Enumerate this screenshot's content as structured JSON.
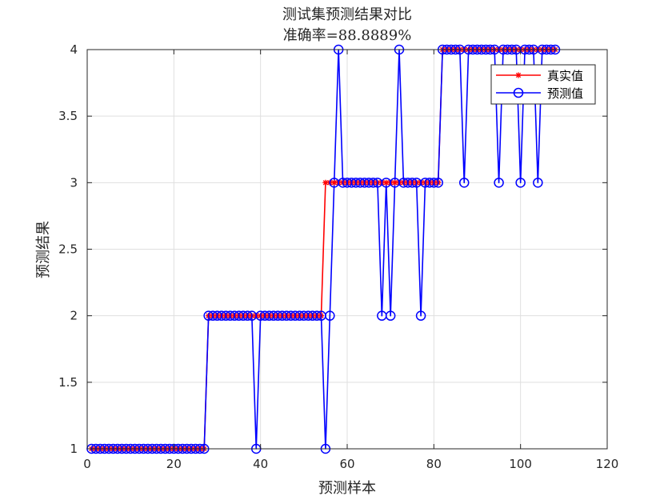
{
  "chart_data": {
    "type": "line",
    "title": "测试集预测结果对比",
    "subtitle": "准确率=88.8889%",
    "xlabel": "预测样本",
    "ylabel": "预测结果",
    "xlim": [
      0,
      120
    ],
    "ylim": [
      1,
      4
    ],
    "xticks": [
      0,
      20,
      40,
      60,
      80,
      100,
      120
    ],
    "yticks": [
      1,
      1.5,
      2,
      2.5,
      3,
      3.5,
      4
    ],
    "grid": true,
    "legend_position": "top-right",
    "x": [
      1,
      2,
      3,
      4,
      5,
      6,
      7,
      8,
      9,
      10,
      11,
      12,
      13,
      14,
      15,
      16,
      17,
      18,
      19,
      20,
      21,
      22,
      23,
      24,
      25,
      26,
      27,
      28,
      29,
      30,
      31,
      32,
      33,
      34,
      35,
      36,
      37,
      38,
      39,
      40,
      41,
      42,
      43,
      44,
      45,
      46,
      47,
      48,
      49,
      50,
      51,
      52,
      53,
      54,
      55,
      56,
      57,
      58,
      59,
      60,
      61,
      62,
      63,
      64,
      65,
      66,
      67,
      68,
      69,
      70,
      71,
      72,
      73,
      74,
      75,
      76,
      77,
      78,
      79,
      80,
      81,
      82,
      83,
      84,
      85,
      86,
      87,
      88,
      89,
      90,
      91,
      92,
      93,
      94,
      95,
      96,
      97,
      98,
      99,
      100,
      101,
      102,
      103,
      104,
      105,
      106,
      107,
      108
    ],
    "series": [
      {
        "name": "真实值",
        "color": "#ff0000",
        "marker": "asterisk",
        "values": [
          1,
          1,
          1,
          1,
          1,
          1,
          1,
          1,
          1,
          1,
          1,
          1,
          1,
          1,
          1,
          1,
          1,
          1,
          1,
          1,
          1,
          1,
          1,
          1,
          1,
          1,
          1,
          2,
          2,
          2,
          2,
          2,
          2,
          2,
          2,
          2,
          2,
          2,
          2,
          2,
          2,
          2,
          2,
          2,
          2,
          2,
          2,
          2,
          2,
          2,
          2,
          2,
          2,
          2,
          3,
          3,
          3,
          3,
          3,
          3,
          3,
          3,
          3,
          3,
          3,
          3,
          3,
          3,
          3,
          3,
          3,
          3,
          3,
          3,
          3,
          3,
          3,
          3,
          3,
          3,
          3,
          4,
          4,
          4,
          4,
          4,
          4,
          4,
          4,
          4,
          4,
          4,
          4,
          4,
          4,
          4,
          4,
          4,
          4,
          4,
          4,
          4,
          4,
          4,
          4,
          4,
          4,
          4
        ]
      },
      {
        "name": "预测值",
        "color": "#0000ff",
        "marker": "circle",
        "values": [
          1,
          1,
          1,
          1,
          1,
          1,
          1,
          1,
          1,
          1,
          1,
          1,
          1,
          1,
          1,
          1,
          1,
          1,
          1,
          1,
          1,
          1,
          1,
          1,
          1,
          1,
          1,
          2,
          2,
          2,
          2,
          2,
          2,
          2,
          2,
          2,
          2,
          2,
          1,
          2,
          2,
          2,
          2,
          2,
          2,
          2,
          2,
          2,
          2,
          2,
          2,
          2,
          2,
          2,
          1,
          2,
          3,
          4,
          3,
          3,
          3,
          3,
          3,
          3,
          3,
          3,
          3,
          2,
          3,
          2,
          3,
          4,
          3,
          3,
          3,
          3,
          2,
          3,
          3,
          3,
          3,
          4,
          4,
          4,
          4,
          4,
          3,
          4,
          4,
          4,
          4,
          4,
          4,
          4,
          3,
          4,
          4,
          4,
          4,
          3,
          4,
          4,
          4,
          3,
          4,
          4,
          4,
          4
        ]
      }
    ]
  }
}
